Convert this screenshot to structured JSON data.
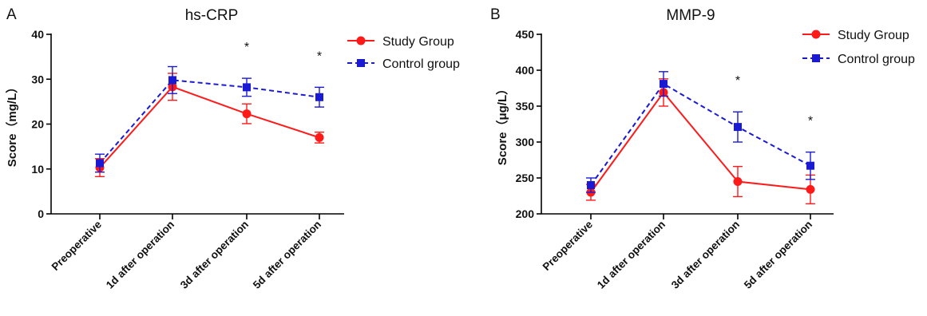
{
  "chart_data": [
    {
      "panel": "A",
      "type": "line",
      "title": "hs-CRP",
      "xlabel": "",
      "ylabel": "Score（mg/L）",
      "ylim": [
        0,
        40
      ],
      "yticks": [
        "0",
        "10",
        "20",
        "30",
        "40"
      ],
      "categories": [
        "Preoperative",
        "1d after operation",
        "3d after operation",
        "5d after operation"
      ],
      "significance": [
        "",
        "",
        "*",
        "*"
      ],
      "legend_position": "top-right",
      "series": [
        {
          "name": "Study Group",
          "color": "#ff1a1a",
          "marker": "circle",
          "line": "solid",
          "values": [
            10.3,
            28.3,
            22.3,
            17.0
          ],
          "errors": [
            2.0,
            3.0,
            2.2,
            1.2
          ]
        },
        {
          "name": "Control group",
          "color": "#1a1ad4",
          "marker": "square",
          "line": "dashed",
          "values": [
            11.3,
            29.8,
            28.2,
            26.0
          ],
          "errors": [
            2.0,
            3.0,
            2.0,
            2.2
          ]
        }
      ]
    },
    {
      "panel": "B",
      "type": "line",
      "title": "MMP-9",
      "xlabel": "",
      "ylabel": "Score（μg/L）",
      "ylim": [
        200,
        450
      ],
      "yticks": [
        "200",
        "250",
        "300",
        "350",
        "400",
        "450"
      ],
      "categories": [
        "Preoperative",
        "1d after operation",
        "3d after operation",
        "5d after operation"
      ],
      "significance": [
        "",
        "",
        "*",
        "*"
      ],
      "legend_position": "top-right",
      "series": [
        {
          "name": "Study Group",
          "color": "#ff1a1a",
          "marker": "circle",
          "line": "solid",
          "values": [
            230,
            369,
            245,
            234
          ],
          "errors": [
            11,
            19,
            21,
            20
          ]
        },
        {
          "name": "Control group",
          "color": "#1a1ad4",
          "marker": "square",
          "line": "dashed",
          "values": [
            240,
            381,
            321,
            267
          ],
          "errors": [
            10,
            17,
            21,
            19
          ]
        }
      ]
    }
  ]
}
